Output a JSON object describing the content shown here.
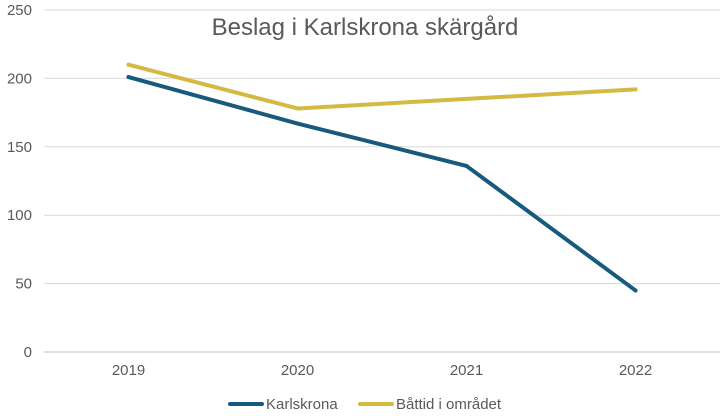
{
  "chart_data": {
    "type": "line",
    "title": "Beslag i Karlskrona skärgård",
    "xlabel": "",
    "ylabel": "",
    "categories": [
      "2019",
      "2020",
      "2021",
      "2022"
    ],
    "ylim": [
      0,
      250
    ],
    "yticks": [
      0,
      50,
      100,
      150,
      200,
      250
    ],
    "grid": true,
    "legend": "bottom",
    "series": [
      {
        "name": "Karlskrona",
        "values": [
          201,
          167,
          136,
          45
        ],
        "color": "#165a7d"
      },
      {
        "name": "Båttid i området",
        "values": [
          210,
          178,
          185,
          192
        ],
        "color": "#d4b943"
      }
    ]
  }
}
